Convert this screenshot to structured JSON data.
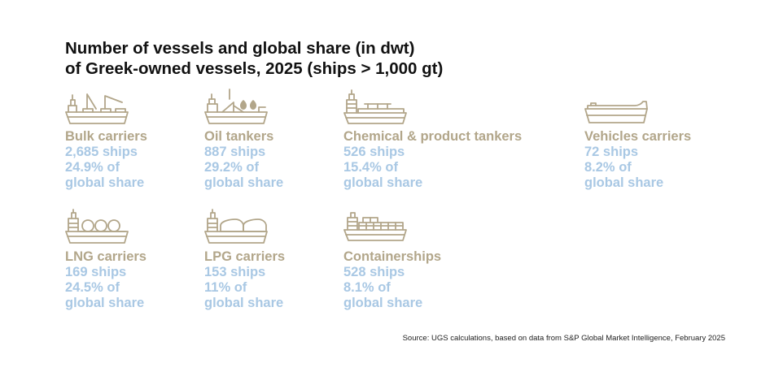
{
  "title": {
    "line1": "Number of vessels and global share (in dwt)",
    "line2": "of Greek-owned vessels, 2025 (ships > 1,000 gt)"
  },
  "vessels": [
    {
      "name": "Bulk carriers",
      "ships": "2,685 ships",
      "share_line1": "24.9% of",
      "share_line2": "global share",
      "icon": "bulk-carrier-icon"
    },
    {
      "name": "Oil tankers",
      "ships": "887 ships",
      "share_line1": "29.2% of",
      "share_line2": "global share",
      "icon": "oil-tanker-icon"
    },
    {
      "name": "Chemical & product tankers",
      "ships": "526 ships",
      "share_line1": "15.4% of",
      "share_line2": "global share",
      "icon": "chemical-tanker-icon"
    },
    {
      "name": "Vehicles carriers",
      "ships": "72 ships",
      "share_line1": "8.2% of",
      "share_line2": "global share",
      "icon": "vehicle-carrier-icon"
    },
    {
      "name": "LNG carriers",
      "ships": "169 ships",
      "share_line1": "24.5% of",
      "share_line2": "global share",
      "icon": "lng-carrier-icon"
    },
    {
      "name": "LPG carriers",
      "ships": "153 ships",
      "share_line1": "11% of",
      "share_line2": "global share",
      "icon": "lpg-carrier-icon"
    },
    {
      "name": "Containerships",
      "ships": "528 ships",
      "share_line1": "8.1% of",
      "share_line2": "global share",
      "icon": "containership-icon"
    }
  ],
  "source": "Source: UGS calculations, based on data from S&P Global Market Intelligence, February 2025",
  "colors": {
    "title": "#111111",
    "vessel_name": "#b2a68a",
    "stat": "#a9c8e4",
    "icon": "#b2a68a"
  }
}
